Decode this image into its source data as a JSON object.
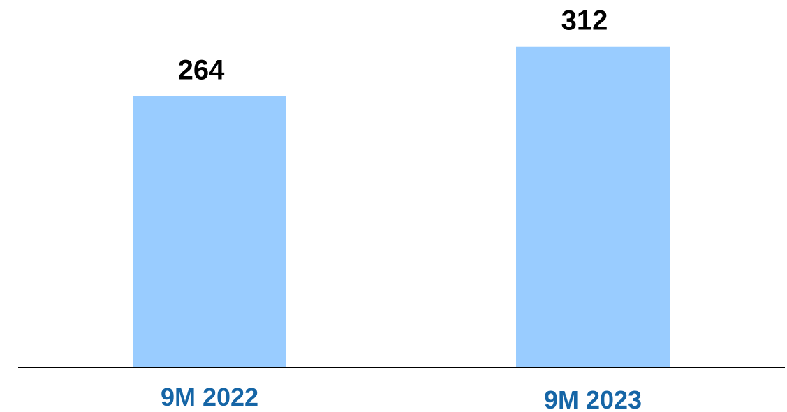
{
  "chart_data": {
    "type": "bar",
    "categories": [
      "9M 2022",
      "9M 2023"
    ],
    "values": [
      264,
      312
    ],
    "data_labels": [
      "264",
      "312"
    ],
    "title": "",
    "xlabel": "",
    "ylabel": "",
    "ylim": [
      0,
      360
    ],
    "grid": false,
    "legend": "none",
    "colors": {
      "bar": "#99ccff",
      "value_label": "#000000",
      "category_label": "#1565a6",
      "axis": "#000000"
    }
  }
}
